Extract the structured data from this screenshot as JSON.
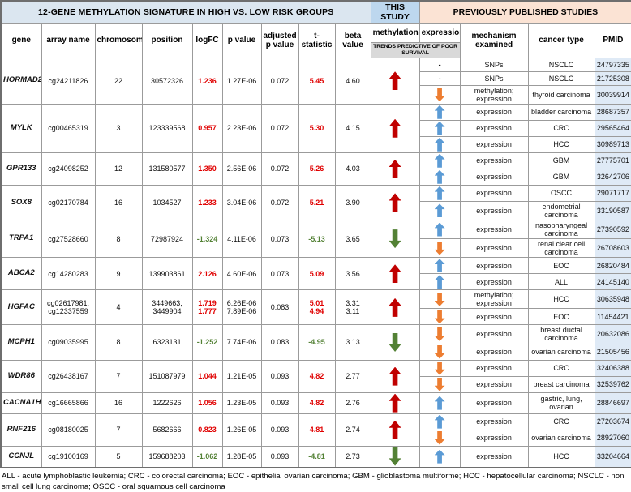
{
  "header": {
    "title": "12-GENE METHYLATION SIGNATURE IN HIGH VS. LOW RISK GROUPS",
    "this_study": "THIS STUDY",
    "published": "PREVIOUSLY PUBLISHED STUDIES",
    "trends": "TRENDS PREDICTIVE OF POOR SURVIVAL",
    "columns": {
      "gene": "gene",
      "array_name": "array name",
      "chromosome": "chromosome",
      "position": "position",
      "logfc": "logFC",
      "p_value": "p value",
      "adjusted_p_value": "adjusted p value",
      "t_statistic": "t-statistic",
      "beta_value": "beta value",
      "methylation": "methylation",
      "expression": "expression",
      "mechanism": "mechanism examined",
      "cancer_type": "cancer type",
      "pmid": "PMID"
    }
  },
  "colors": {
    "title_bg": "#dbe6f0",
    "this_study_bg": "#bdd7ee",
    "published_bg": "#fbe3d4",
    "trends_bg": "#d9d9d9",
    "pmid_cell_bg": "#dfeaf6",
    "positive_value": "#e00000",
    "negative_value": "#538135",
    "arrow_red": "#c00000",
    "arrow_blue": "#5b9bd5",
    "arrow_orange": "#ed7d31",
    "arrow_green": "#538135"
  },
  "genes": [
    {
      "gene": "HORMAD2",
      "array_name": [
        "cg24211826"
      ],
      "chromosome": "22",
      "position": [
        "30572326"
      ],
      "logfc": [
        "1.236"
      ],
      "p_value": [
        "1.27E-06"
      ],
      "adj_p": "0.072",
      "t_stat": [
        "5.45"
      ],
      "beta": [
        "4.60"
      ],
      "methylation": "up-red",
      "studies": [
        {
          "expression": "dash",
          "mechanism": "SNPs",
          "cancer": "NSCLC",
          "pmid": "24797335"
        },
        {
          "expression": "dash",
          "mechanism": "SNPs",
          "cancer": "NSCLC",
          "pmid": "21725308"
        },
        {
          "expression": "down-orange",
          "mechanism": "methylation; expression",
          "cancer": "thyroid carcinoma",
          "pmid": "30039914"
        }
      ]
    },
    {
      "gene": "MYLK",
      "array_name": [
        "cg00465319"
      ],
      "chromosome": "3",
      "position": [
        "123339568"
      ],
      "logfc": [
        "0.957"
      ],
      "p_value": [
        "2.23E-06"
      ],
      "adj_p": "0.072",
      "t_stat": [
        "5.30"
      ],
      "beta": [
        "4.15"
      ],
      "methylation": "up-red",
      "studies": [
        {
          "expression": "up-blue",
          "mechanism": "expression",
          "cancer": "bladder carcinoma",
          "pmid": "28687357"
        },
        {
          "expression": "up-blue",
          "mechanism": "expression",
          "cancer": "CRC",
          "pmid": "29565464"
        },
        {
          "expression": "up-blue",
          "mechanism": "expression",
          "cancer": "HCC",
          "pmid": "30989713"
        }
      ]
    },
    {
      "gene": "GPR133",
      "array_name": [
        "cg24098252"
      ],
      "chromosome": "12",
      "position": [
        "131580577"
      ],
      "logfc": [
        "1.350"
      ],
      "p_value": [
        "2.56E-06"
      ],
      "adj_p": "0.072",
      "t_stat": [
        "5.26"
      ],
      "beta": [
        "4.03"
      ],
      "methylation": "up-red",
      "studies": [
        {
          "expression": "up-blue",
          "mechanism": "expression",
          "cancer": "GBM",
          "pmid": "27775701"
        },
        {
          "expression": "up-blue",
          "mechanism": "expression",
          "cancer": "GBM",
          "pmid": "32642706"
        }
      ]
    },
    {
      "gene": "SOX8",
      "array_name": [
        "cg02170784"
      ],
      "chromosome": "16",
      "position": [
        "1034527"
      ],
      "logfc": [
        "1.233"
      ],
      "p_value": [
        "3.04E-06"
      ],
      "adj_p": "0.072",
      "t_stat": [
        "5.21"
      ],
      "beta": [
        "3.90"
      ],
      "methylation": "up-red",
      "studies": [
        {
          "expression": "up-blue",
          "mechanism": "expression",
          "cancer": "OSCC",
          "pmid": "29071717"
        },
        {
          "expression": "up-blue",
          "mechanism": "expression",
          "cancer": "endometrial carcinoma",
          "pmid": "33190587"
        }
      ]
    },
    {
      "gene": "TRPA1",
      "array_name": [
        "cg27528660"
      ],
      "chromosome": "8",
      "position": [
        "72987924"
      ],
      "logfc": [
        "-1.324"
      ],
      "p_value": [
        "4.11E-06"
      ],
      "adj_p": "0.073",
      "t_stat": [
        "-5.13"
      ],
      "beta": [
        "3.65"
      ],
      "methylation": "down-green",
      "studies": [
        {
          "expression": "up-blue",
          "mechanism": "expression",
          "cancer": "nasopharyngeal carcinoma",
          "pmid": "27390592"
        },
        {
          "expression": "down-orange",
          "mechanism": "expression",
          "cancer": "renal clear cell carcinoma",
          "pmid": "26708603"
        }
      ]
    },
    {
      "gene": "ABCA2",
      "array_name": [
        "cg14280283"
      ],
      "chromosome": "9",
      "position": [
        "139903861"
      ],
      "logfc": [
        "2.126"
      ],
      "p_value": [
        "4.60E-06"
      ],
      "adj_p": "0.073",
      "t_stat": [
        "5.09"
      ],
      "beta": [
        "3.56"
      ],
      "methylation": "up-red",
      "studies": [
        {
          "expression": "up-blue",
          "mechanism": "expression",
          "cancer": "EOC",
          "pmid": "26820484"
        },
        {
          "expression": "up-blue",
          "mechanism": "expression",
          "cancer": "ALL",
          "pmid": "24145140"
        }
      ]
    },
    {
      "gene": "HGFAC",
      "array_name": [
        "cg02617981,",
        "cg12337559"
      ],
      "chromosome": "4",
      "position": [
        "3449663,",
        "3449904"
      ],
      "logfc": [
        "1.719",
        "1.777"
      ],
      "p_value": [
        "6.26E-06",
        "7.89E-06"
      ],
      "adj_p": "0.083",
      "t_stat": [
        "5.01",
        "4.94"
      ],
      "beta": [
        "3.31",
        "3.11"
      ],
      "methylation": "up-red",
      "studies": [
        {
          "expression": "down-orange",
          "mechanism": "methylation; expression",
          "cancer": "HCC",
          "pmid": "30635948"
        },
        {
          "expression": "down-orange",
          "mechanism": "expression",
          "cancer": "EOC",
          "pmid": "11454421"
        }
      ]
    },
    {
      "gene": "MCPH1",
      "array_name": [
        "cg09035995"
      ],
      "chromosome": "8",
      "position": [
        "6323131"
      ],
      "logfc": [
        "-1.252"
      ],
      "p_value": [
        "7.74E-06"
      ],
      "adj_p": "0.083",
      "t_stat": [
        "-4.95"
      ],
      "beta": [
        "3.13"
      ],
      "methylation": "down-green",
      "studies": [
        {
          "expression": "down-orange",
          "mechanism": "expression",
          "cancer": "breast ductal carcinoma",
          "pmid": "20632086"
        },
        {
          "expression": "down-orange",
          "mechanism": "expression",
          "cancer": "ovarian carcinoma",
          "pmid": "21505456"
        }
      ]
    },
    {
      "gene": "WDR86",
      "array_name": [
        "cg26438167"
      ],
      "chromosome": "7",
      "position": [
        "151087979"
      ],
      "logfc": [
        "1.044"
      ],
      "p_value": [
        "1.21E-05"
      ],
      "adj_p": "0.093",
      "t_stat": [
        "4.82"
      ],
      "beta": [
        "2.77"
      ],
      "methylation": "up-red",
      "studies": [
        {
          "expression": "down-orange",
          "mechanism": "expression",
          "cancer": "CRC",
          "pmid": "32406388"
        },
        {
          "expression": "down-orange",
          "mechanism": "expression",
          "cancer": "breast carcinoma",
          "pmid": "32539762"
        }
      ]
    },
    {
      "gene": "CACNA1H",
      "array_name": [
        "cg16665866"
      ],
      "chromosome": "16",
      "position": [
        "1222626"
      ],
      "logfc": [
        "1.056"
      ],
      "p_value": [
        "1.23E-05"
      ],
      "adj_p": "0.093",
      "t_stat": [
        "4.82"
      ],
      "beta": [
        "2.76"
      ],
      "methylation": "up-red",
      "studies": [
        {
          "expression": "up-blue",
          "mechanism": "expression",
          "cancer": "gastric, lung, ovarian",
          "pmid": "28846697"
        }
      ]
    },
    {
      "gene": "RNF216",
      "array_name": [
        "cg08180025"
      ],
      "chromosome": "7",
      "position": [
        "5682666"
      ],
      "logfc": [
        "0.823"
      ],
      "p_value": [
        "1.26E-05"
      ],
      "adj_p": "0.093",
      "t_stat": [
        "4.81"
      ],
      "beta": [
        "2.74"
      ],
      "methylation": "up-red",
      "studies": [
        {
          "expression": "up-blue",
          "mechanism": "expression",
          "cancer": "CRC",
          "pmid": "27203674"
        },
        {
          "expression": "down-orange",
          "mechanism": "expression",
          "cancer": "ovarian carcinoma",
          "pmid": "28927060"
        }
      ]
    },
    {
      "gene": "CCNJL",
      "array_name": [
        "cg19100169"
      ],
      "chromosome": "5",
      "position": [
        "159688203"
      ],
      "logfc": [
        "-1.062"
      ],
      "p_value": [
        "1.28E-05"
      ],
      "adj_p": "0.093",
      "t_stat": [
        "-4.81"
      ],
      "beta": [
        "2.73"
      ],
      "methylation": "down-green",
      "studies": [
        {
          "expression": "up-blue",
          "mechanism": "expression",
          "cancer": "HCC",
          "pmid": "33204664"
        }
      ]
    }
  ],
  "footnote": "ALL - acute lymphoblastic leukemia; CRC - colorectal carcinoma; EOC - epithelial ovarian carcinoma; GBM - glioblastoma multiforme; HCC - hepatocellular carcinoma;  NSCLC - non small cell lung carcinoma; OSCC - oral squamous cell carcinoma"
}
